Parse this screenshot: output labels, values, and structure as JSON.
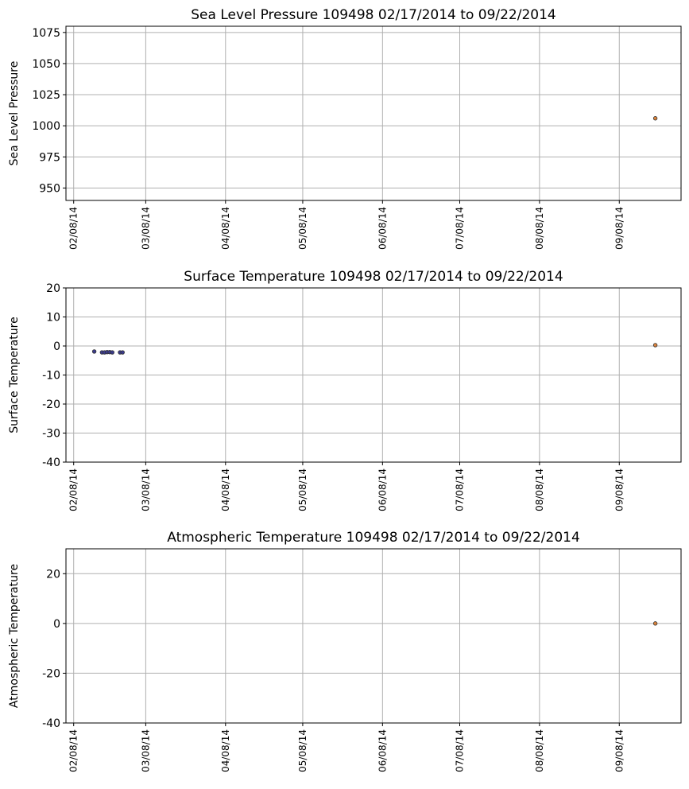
{
  "chart_data": [
    {
      "type": "scatter",
      "title": "Sea Level Pressure 109498  02/17/2014 to 09/22/2014",
      "ylabel": "Sea Level Pressure",
      "series": [
        {
          "color": "#d9823b",
          "x": [
            "2014-09-22"
          ],
          "values": [
            1006
          ]
        }
      ],
      "xlim": [
        "2014-02-05",
        "2014-10-02"
      ],
      "xticks": [
        {
          "value": "2014-02-08",
          "label": "02/08/14"
        },
        {
          "value": "2014-03-08",
          "label": "03/08/14"
        },
        {
          "value": "2014-04-08",
          "label": "04/08/14"
        },
        {
          "value": "2014-05-08",
          "label": "05/08/14"
        },
        {
          "value": "2014-06-08",
          "label": "06/08/14"
        },
        {
          "value": "2014-07-08",
          "label": "07/08/14"
        },
        {
          "value": "2014-08-08",
          "label": "08/08/14"
        },
        {
          "value": "2014-09-08",
          "label": "09/08/14"
        }
      ],
      "ylim": [
        940,
        1080
      ],
      "yticks": [
        950,
        975,
        1000,
        1025,
        1050,
        1075
      ],
      "grid": true
    },
    {
      "type": "scatter",
      "title": "Surface Temperature 109498  02/17/2014 to 09/22/2014",
      "ylabel": "Surface Temperature",
      "series": [
        {
          "color": "#3b3b8c",
          "x": [
            "2014-02-16",
            "2014-02-19",
            "2014-02-20",
            "2014-02-21",
            "2014-02-22",
            "2014-02-23",
            "2014-02-26",
            "2014-02-27"
          ],
          "values": [
            -1.9,
            -2.2,
            -2.2,
            -2.1,
            -2.1,
            -2.2,
            -2.2,
            -2.2
          ]
        },
        {
          "color": "#d9823b",
          "x": [
            "2014-09-22"
          ],
          "values": [
            0.3
          ]
        }
      ],
      "xlim": [
        "2014-02-05",
        "2014-10-02"
      ],
      "xticks": [
        {
          "value": "2014-02-08",
          "label": "02/08/14"
        },
        {
          "value": "2014-03-08",
          "label": "03/08/14"
        },
        {
          "value": "2014-04-08",
          "label": "04/08/14"
        },
        {
          "value": "2014-05-08",
          "label": "05/08/14"
        },
        {
          "value": "2014-06-08",
          "label": "06/08/14"
        },
        {
          "value": "2014-07-08",
          "label": "07/08/14"
        },
        {
          "value": "2014-08-08",
          "label": "08/08/14"
        },
        {
          "value": "2014-09-08",
          "label": "09/08/14"
        }
      ],
      "ylim": [
        -40,
        20
      ],
      "yticks": [
        -40,
        -30,
        -20,
        -10,
        0,
        10,
        20
      ],
      "grid": true
    },
    {
      "type": "scatter",
      "title": "Atmospheric Temperature 109498  02/17/2014 to 09/22/2014",
      "ylabel": "Atmospheric Temperature",
      "series": [
        {
          "color": "#d9823b",
          "x": [
            "2014-09-22"
          ],
          "values": [
            0
          ]
        }
      ],
      "xlim": [
        "2014-02-05",
        "2014-10-02"
      ],
      "xticks": [
        {
          "value": "2014-02-08",
          "label": "02/08/14"
        },
        {
          "value": "2014-03-08",
          "label": "03/08/14"
        },
        {
          "value": "2014-04-08",
          "label": "04/08/14"
        },
        {
          "value": "2014-05-08",
          "label": "05/08/14"
        },
        {
          "value": "2014-06-08",
          "label": "06/08/14"
        },
        {
          "value": "2014-07-08",
          "label": "07/08/14"
        },
        {
          "value": "2014-08-08",
          "label": "08/08/14"
        },
        {
          "value": "2014-09-08",
          "label": "09/08/14"
        }
      ],
      "ylim": [
        -40,
        30
      ],
      "yticks": [
        -40,
        -20,
        0,
        20
      ],
      "grid": true
    }
  ]
}
